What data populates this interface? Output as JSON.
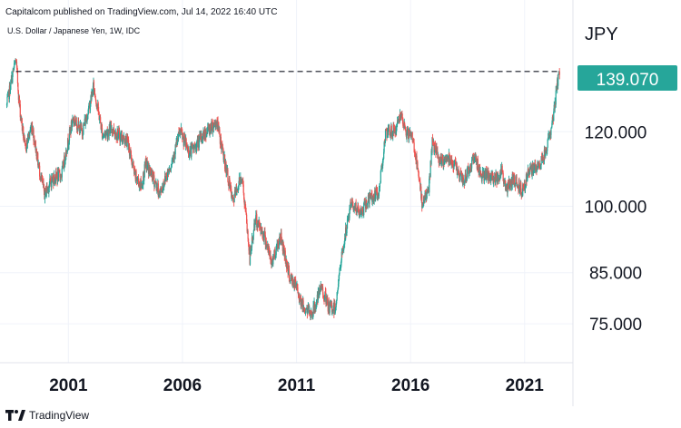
{
  "header": {
    "text": "Capitalcom published on TradingView.com, Jul 14, 2022 16:40 UTC"
  },
  "symbol": {
    "text": "U.S. Dollar / Japanese Yen, 1W, IDC"
  },
  "footer": {
    "brand": "TradingView"
  },
  "colors": {
    "up": "#26a69a",
    "down": "#ef5350",
    "price_badge": "#26a69a",
    "grid": "#f0f3fa",
    "dash": "#131722"
  },
  "chart_data": {
    "type": "candlestick",
    "ylabel": "JPY",
    "price_scale": "log",
    "current_price": 139.07,
    "current_price_label": "139.070",
    "yticks": [
      {
        "value": 120,
        "label": "120.000"
      },
      {
        "value": 100,
        "label": "100.000"
      },
      {
        "value": 85,
        "label": "85.000"
      },
      {
        "value": 75,
        "label": "75.000"
      }
    ],
    "xticks": [
      {
        "value": 2001,
        "label": "2001"
      },
      {
        "value": 2006,
        "label": "2006"
      },
      {
        "value": 2011,
        "label": "2011"
      },
      {
        "value": 2016,
        "label": "2016"
      },
      {
        "value": 2021,
        "label": "2021"
      }
    ],
    "x_range": [
      1998.2,
      2023.0
    ],
    "y_range": [
      68.5,
      162
    ],
    "horizontal_line": {
      "from_x": 1998.7,
      "to_x": 2022.5,
      "value": 139.07,
      "style": "dashed"
    },
    "weekly_close_path": [
      {
        "x": 1998.3,
        "y": 128
      },
      {
        "x": 1998.55,
        "y": 138
      },
      {
        "x": 1998.7,
        "y": 143
      },
      {
        "x": 1998.85,
        "y": 128
      },
      {
        "x": 1999.1,
        "y": 115
      },
      {
        "x": 1999.4,
        "y": 122
      },
      {
        "x": 1999.7,
        "y": 110
      },
      {
        "x": 1999.95,
        "y": 103
      },
      {
        "x": 2000.3,
        "y": 107
      },
      {
        "x": 2000.7,
        "y": 108
      },
      {
        "x": 2000.95,
        "y": 116
      },
      {
        "x": 2001.2,
        "y": 124
      },
      {
        "x": 2001.6,
        "y": 120
      },
      {
        "x": 2001.9,
        "y": 127
      },
      {
        "x": 2002.1,
        "y": 134
      },
      {
        "x": 2002.5,
        "y": 119
      },
      {
        "x": 2002.9,
        "y": 121
      },
      {
        "x": 2003.2,
        "y": 119
      },
      {
        "x": 2003.6,
        "y": 117
      },
      {
        "x": 2003.9,
        "y": 108
      },
      {
        "x": 2004.2,
        "y": 105
      },
      {
        "x": 2004.4,
        "y": 111
      },
      {
        "x": 2004.8,
        "y": 106
      },
      {
        "x": 2005.0,
        "y": 103
      },
      {
        "x": 2005.5,
        "y": 111
      },
      {
        "x": 2005.9,
        "y": 120
      },
      {
        "x": 2006.3,
        "y": 114
      },
      {
        "x": 2006.6,
        "y": 116
      },
      {
        "x": 2006.9,
        "y": 119
      },
      {
        "x": 2007.2,
        "y": 121
      },
      {
        "x": 2007.5,
        "y": 123
      },
      {
        "x": 2007.8,
        "y": 113
      },
      {
        "x": 2008.2,
        "y": 101
      },
      {
        "x": 2008.6,
        "y": 108
      },
      {
        "x": 2008.95,
        "y": 88
      },
      {
        "x": 2009.2,
        "y": 97
      },
      {
        "x": 2009.6,
        "y": 93
      },
      {
        "x": 2009.9,
        "y": 87
      },
      {
        "x": 2010.3,
        "y": 93
      },
      {
        "x": 2010.7,
        "y": 84
      },
      {
        "x": 2011.0,
        "y": 82
      },
      {
        "x": 2011.3,
        "y": 78
      },
      {
        "x": 2011.7,
        "y": 77
      },
      {
        "x": 2012.1,
        "y": 82
      },
      {
        "x": 2012.4,
        "y": 78
      },
      {
        "x": 2012.7,
        "y": 78
      },
      {
        "x": 2013.0,
        "y": 89
      },
      {
        "x": 2013.4,
        "y": 101
      },
      {
        "x": 2013.8,
        "y": 98
      },
      {
        "x": 2014.2,
        "y": 102
      },
      {
        "x": 2014.6,
        "y": 103
      },
      {
        "x": 2014.9,
        "y": 119
      },
      {
        "x": 2015.4,
        "y": 121
      },
      {
        "x": 2015.5,
        "y": 125
      },
      {
        "x": 2015.8,
        "y": 120
      },
      {
        "x": 2016.1,
        "y": 118
      },
      {
        "x": 2016.5,
        "y": 101
      },
      {
        "x": 2016.8,
        "y": 104
      },
      {
        "x": 2016.95,
        "y": 117
      },
      {
        "x": 2017.3,
        "y": 111
      },
      {
        "x": 2017.7,
        "y": 113
      },
      {
        "x": 2018.0,
        "y": 110
      },
      {
        "x": 2018.3,
        "y": 106
      },
      {
        "x": 2018.8,
        "y": 113
      },
      {
        "x": 2019.1,
        "y": 108
      },
      {
        "x": 2019.7,
        "y": 107
      },
      {
        "x": 2020.0,
        "y": 109
      },
      {
        "x": 2020.2,
        "y": 104
      },
      {
        "x": 2020.5,
        "y": 107
      },
      {
        "x": 2020.9,
        "y": 104
      },
      {
        "x": 2021.2,
        "y": 109
      },
      {
        "x": 2021.6,
        "y": 110
      },
      {
        "x": 2021.9,
        "y": 114
      },
      {
        "x": 2022.2,
        "y": 122
      },
      {
        "x": 2022.35,
        "y": 130
      },
      {
        "x": 2022.45,
        "y": 136
      },
      {
        "x": 2022.53,
        "y": 139
      }
    ]
  }
}
